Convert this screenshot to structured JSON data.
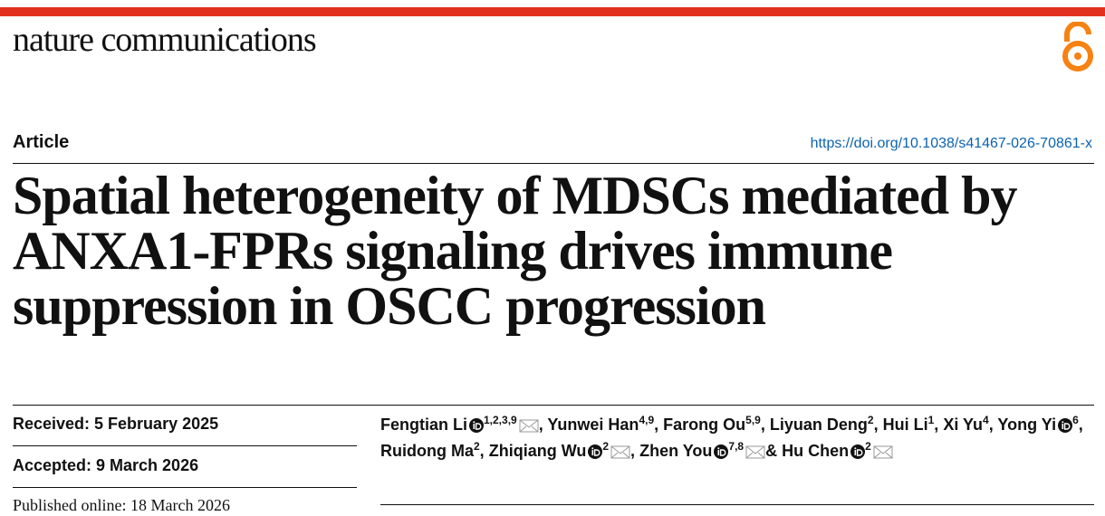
{
  "header": {
    "journal": "nature communications",
    "article_type": "Article",
    "doi": "https://doi.org/10.1038/s41467-026-70861-x"
  },
  "title": [
    "Spatial heterogeneity of MDSCs mediated by",
    "ANXA1-FPRs signaling drives immune",
    "suppression in OSCC progression"
  ],
  "dates": [
    "Received: 5 February 2025",
    "Accepted: 9 March 2026",
    "Published online: 18 March 2026"
  ],
  "authors": [
    {
      "name": "Fengtian Li",
      "orcid": true,
      "affil": "1,2,3,9",
      "email": true,
      "after": ","
    },
    {
      "name": "Yunwei Han",
      "affil": "4,9",
      "after": ","
    },
    {
      "name": "Farong Ou",
      "affil": "5,9",
      "after": ","
    },
    {
      "name": "Liyuan Deng",
      "affil": "2",
      "after": ","
    },
    {
      "name": "Hui Li",
      "affil": "1",
      "after": ","
    },
    {
      "name": "Xi Yu",
      "affil": "4",
      "after": ","
    },
    {
      "name": "Yong Yi",
      "orcid": true,
      "affil": "6",
      "after": ","
    },
    {
      "name": "Ruidong Ma",
      "affil": "2",
      "after": ","
    },
    {
      "name": "Zhiqiang Wu",
      "orcid": true,
      "affil": "2",
      "email": true,
      "after": ","
    },
    {
      "name": "Zhen You",
      "orcid": true,
      "affil": "7,8",
      "email": true,
      "after": "&"
    },
    {
      "name": "Hu Chen",
      "orcid": true,
      "affil": "2",
      "email": true
    }
  ]
}
